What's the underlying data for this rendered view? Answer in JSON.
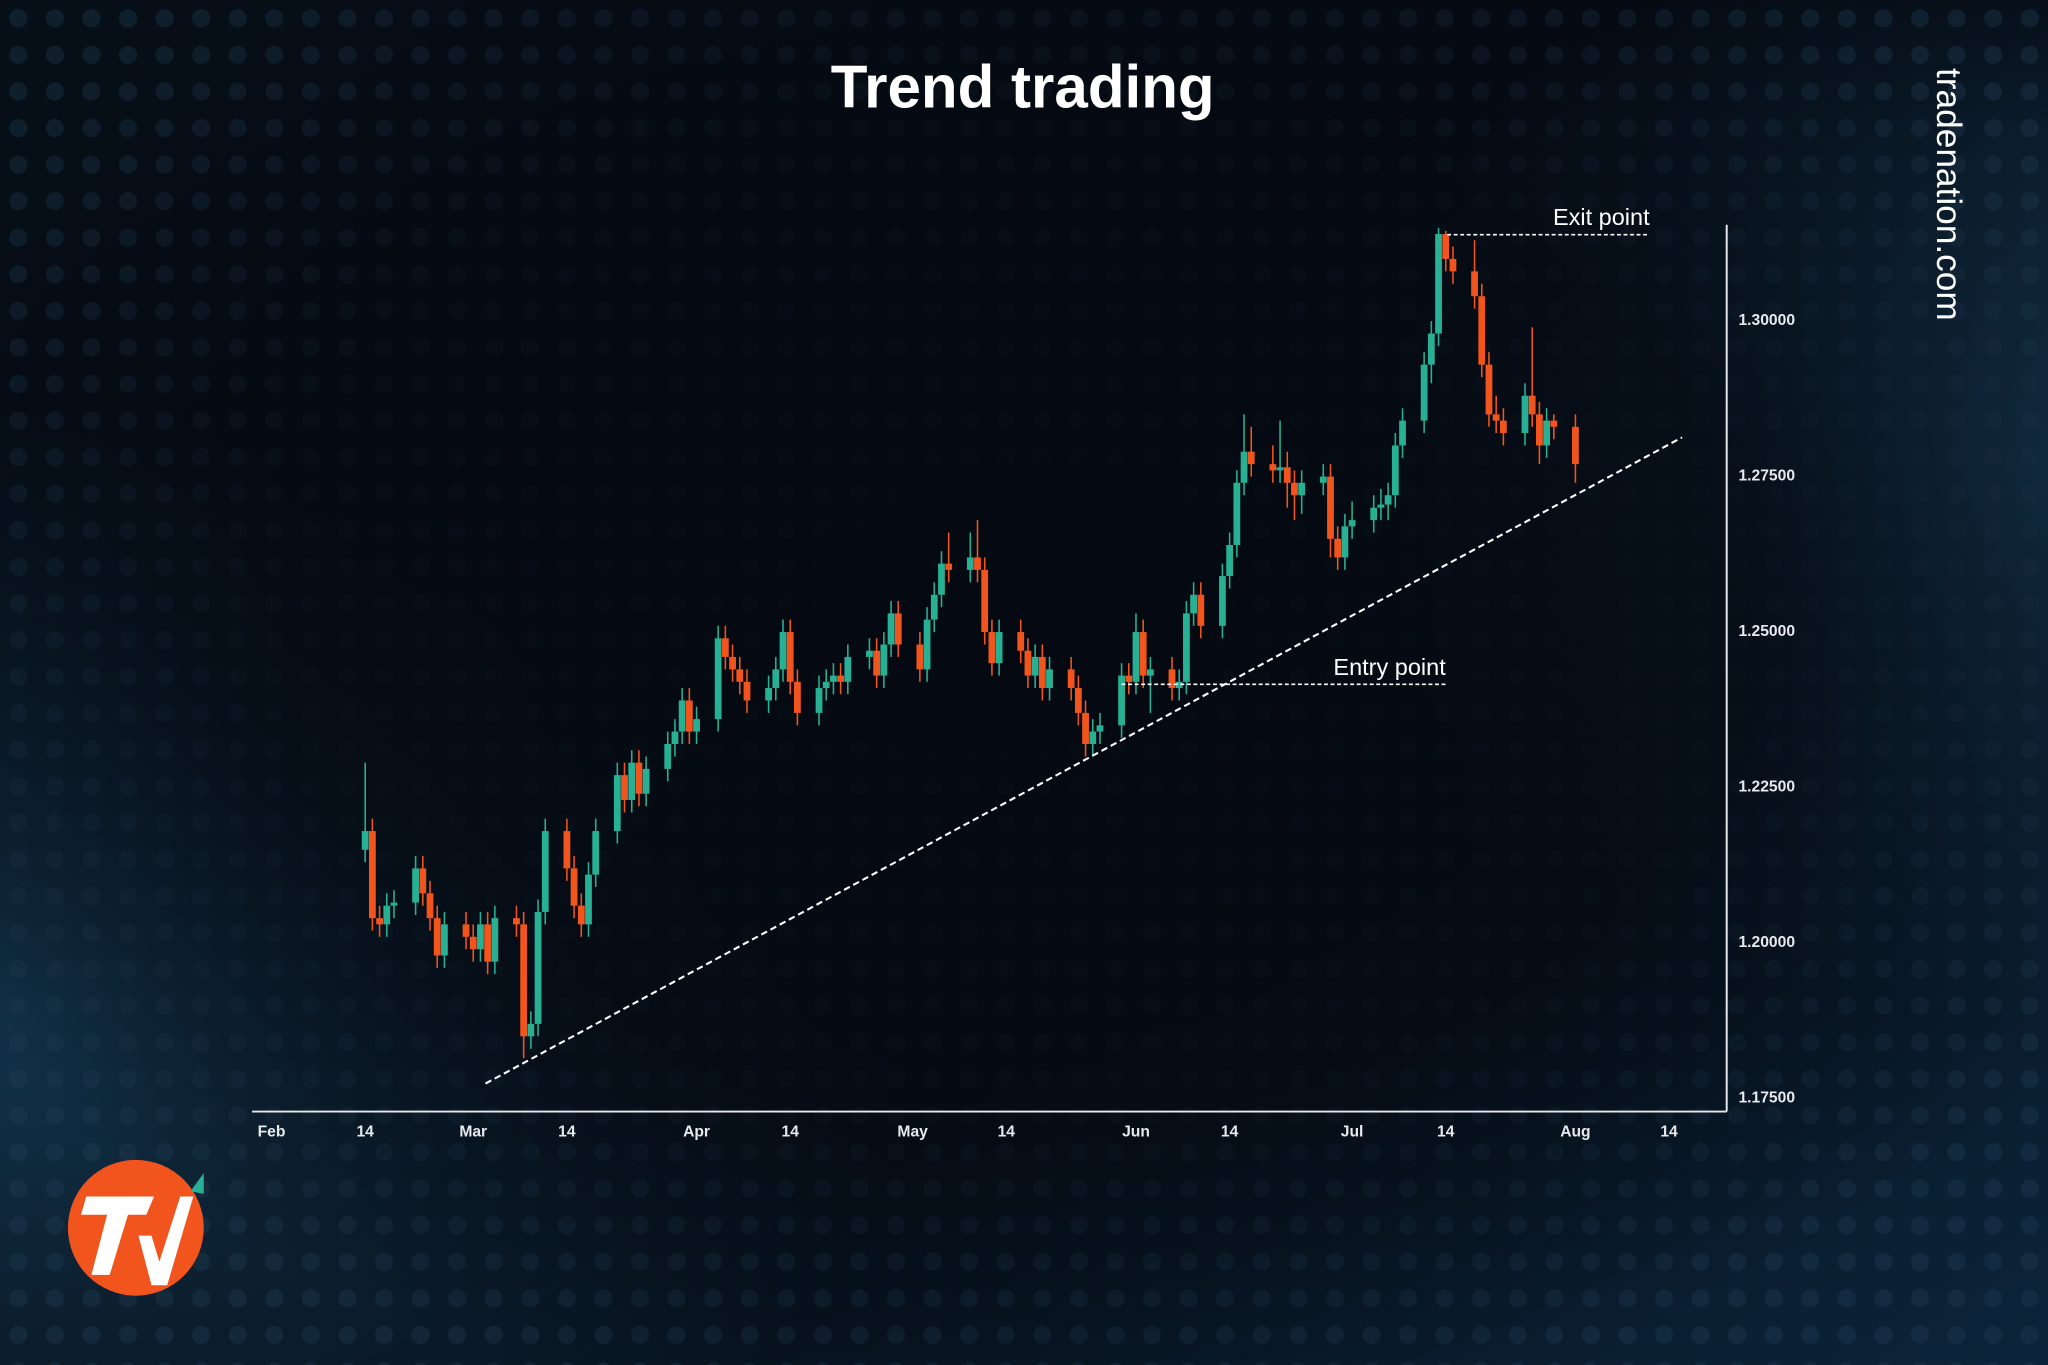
{
  "chart_data": {
    "type": "candlestick",
    "title": "Trend trading",
    "watermark": "tradenation.com",
    "up_color": "#27b093",
    "down_color": "#f2541d",
    "x": [
      45,
      46,
      47,
      48,
      49,
      52,
      53,
      54,
      55,
      56,
      59,
      60,
      61,
      62,
      63,
      66,
      67,
      68,
      69,
      70,
      73,
      74,
      75,
      76,
      77,
      80,
      81,
      82,
      83,
      84,
      87,
      88,
      89,
      90,
      91,
      94,
      95,
      96,
      97,
      98,
      101,
      102,
      103,
      104,
      105,
      108,
      109,
      110,
      111,
      112,
      115,
      116,
      117,
      118,
      119,
      122,
      123,
      124,
      125,
      126,
      129,
      130,
      131,
      132,
      133,
      136,
      137,
      138,
      139,
      140,
      143,
      144,
      145,
      146,
      147,
      150,
      151,
      152,
      153,
      154,
      157,
      158,
      159,
      160,
      161,
      164,
      165,
      166,
      167,
      168,
      171,
      172,
      173,
      174,
      175,
      178,
      179,
      180,
      181,
      182,
      185,
      186,
      187,
      188,
      189,
      192,
      193,
      194,
      195,
      196,
      199,
      200,
      201,
      202,
      203,
      206,
      207,
      208,
      209,
      210,
      213
    ],
    "open": [
      1.215,
      1.218,
      1.204,
      1.203,
      1.206,
      1.2065,
      1.212,
      1.208,
      1.204,
      1.198,
      1.203,
      1.201,
      1.199,
      1.203,
      1.197,
      1.204,
      1.203,
      1.185,
      1.187,
      1.205,
      1.218,
      1.212,
      1.206,
      1.203,
      1.211,
      1.218,
      1.227,
      1.223,
      1.229,
      1.224,
      1.228,
      1.232,
      1.234,
      1.239,
      1.234,
      1.236,
      1.249,
      1.246,
      1.244,
      1.242,
      1.239,
      1.241,
      1.244,
      1.25,
      1.242,
      1.237,
      1.241,
      1.242,
      1.243,
      1.242,
      1.246,
      1.247,
      1.243,
      1.248,
      1.253,
      1.248,
      1.244,
      1.252,
      1.256,
      1.261,
      1.26,
      1.262,
      1.26,
      1.25,
      1.245,
      1.25,
      1.247,
      1.243,
      1.246,
      1.241,
      1.244,
      1.241,
      1.237,
      1.232,
      1.234,
      1.235,
      1.243,
      1.242,
      1.25,
      1.243,
      1.244,
      1.241,
      1.242,
      1.253,
      1.256,
      1.251,
      1.259,
      1.264,
      1.274,
      1.279,
      1.277,
      1.276,
      1.2765,
      1.274,
      1.272,
      1.274,
      1.275,
      1.265,
      1.262,
      1.267,
      1.268,
      1.27,
      1.2705,
      1.272,
      1.28,
      1.284,
      1.293,
      1.298,
      1.314,
      1.31,
      1.308,
      1.304,
      1.293,
      1.285,
      1.284,
      1.282,
      1.288,
      1.285,
      1.28,
      1.284,
      1.283
    ],
    "high": [
      1.229,
      1.22,
      1.206,
      1.208,
      1.2085,
      1.214,
      1.214,
      1.21,
      1.206,
      1.205,
      1.205,
      1.203,
      1.205,
      1.205,
      1.206,
      1.206,
      1.205,
      1.189,
      1.207,
      1.22,
      1.22,
      1.214,
      1.208,
      1.213,
      1.22,
      1.229,
      1.229,
      1.231,
      1.231,
      1.23,
      1.234,
      1.236,
      1.241,
      1.241,
      1.238,
      1.251,
      1.251,
      1.248,
      1.246,
      1.244,
      1.243,
      1.246,
      1.252,
      1.252,
      1.244,
      1.243,
      1.244,
      1.245,
      1.245,
      1.248,
      1.249,
      1.249,
      1.25,
      1.255,
      1.255,
      1.25,
      1.254,
      1.258,
      1.263,
      1.266,
      1.266,
      1.268,
      1.262,
      1.252,
      1.252,
      1.252,
      1.249,
      1.248,
      1.248,
      1.246,
      1.246,
      1.243,
      1.239,
      1.236,
      1.237,
      1.245,
      1.245,
      1.253,
      1.252,
      1.246,
      1.246,
      1.244,
      1.255,
      1.258,
      1.258,
      1.261,
      1.266,
      1.276,
      1.285,
      1.283,
      1.28,
      1.284,
      1.279,
      1.276,
      1.276,
      1.277,
      1.277,
      1.267,
      1.269,
      1.271,
      1.272,
      1.273,
      1.274,
      1.282,
      1.286,
      1.295,
      1.3,
      1.315,
      1.3145,
      1.312,
      1.313,
      1.306,
      1.295,
      1.288,
      1.286,
      1.29,
      1.299,
      1.287,
      1.286,
      1.285,
      1.285
    ],
    "low": [
      1.213,
      1.202,
      1.201,
      1.201,
      1.204,
      1.2045,
      1.206,
      1.202,
      1.196,
      1.196,
      1.199,
      1.197,
      1.197,
      1.195,
      1.195,
      1.201,
      1.1815,
      1.183,
      1.185,
      1.203,
      1.21,
      1.204,
      1.201,
      1.201,
      1.209,
      1.216,
      1.221,
      1.221,
      1.222,
      1.222,
      1.226,
      1.23,
      1.232,
      1.232,
      1.232,
      1.234,
      1.244,
      1.242,
      1.24,
      1.237,
      1.237,
      1.239,
      1.242,
      1.24,
      1.235,
      1.235,
      1.239,
      1.24,
      1.24,
      1.24,
      1.244,
      1.241,
      1.241,
      1.246,
      1.246,
      1.242,
      1.242,
      1.25,
      1.254,
      1.258,
      1.258,
      1.258,
      1.248,
      1.243,
      1.243,
      1.245,
      1.241,
      1.241,
      1.239,
      1.239,
      1.239,
      1.235,
      1.23,
      1.23,
      1.232,
      1.233,
      1.24,
      1.24,
      1.241,
      1.237,
      1.239,
      1.239,
      1.24,
      1.251,
      1.249,
      1.249,
      1.257,
      1.262,
      1.272,
      1.275,
      1.274,
      1.274,
      1.27,
      1.268,
      1.269,
      1.272,
      1.262,
      1.26,
      1.26,
      1.265,
      1.266,
      1.268,
      1.268,
      1.27,
      1.278,
      1.282,
      1.29,
      1.296,
      1.308,
      1.306,
      1.302,
      1.291,
      1.283,
      1.282,
      1.28,
      1.28,
      1.283,
      1.277,
      1.278,
      1.281,
      1.274
    ],
    "close": [
      1.218,
      1.204,
      1.203,
      1.206,
      1.2065,
      1.212,
      1.208,
      1.204,
      1.198,
      1.203,
      1.201,
      1.199,
      1.203,
      1.197,
      1.204,
      1.203,
      1.185,
      1.187,
      1.205,
      1.218,
      1.212,
      1.206,
      1.203,
      1.211,
      1.218,
      1.227,
      1.223,
      1.229,
      1.224,
      1.228,
      1.232,
      1.234,
      1.239,
      1.234,
      1.236,
      1.249,
      1.246,
      1.244,
      1.242,
      1.239,
      1.241,
      1.244,
      1.25,
      1.242,
      1.237,
      1.241,
      1.242,
      1.243,
      1.242,
      1.246,
      1.247,
      1.243,
      1.248,
      1.253,
      1.248,
      1.244,
      1.252,
      1.256,
      1.261,
      1.26,
      1.262,
      1.26,
      1.25,
      1.245,
      1.25,
      1.247,
      1.243,
      1.246,
      1.241,
      1.244,
      1.241,
      1.237,
      1.232,
      1.234,
      1.235,
      1.243,
      1.242,
      1.25,
      1.243,
      1.244,
      1.241,
      1.242,
      1.253,
      1.256,
      1.251,
      1.259,
      1.264,
      1.274,
      1.279,
      1.277,
      1.276,
      1.2765,
      1.274,
      1.272,
      1.274,
      1.275,
      1.265,
      1.262,
      1.267,
      1.268,
      1.27,
      1.2705,
      1.272,
      1.28,
      1.284,
      1.293,
      1.298,
      1.314,
      1.31,
      1.308,
      1.304,
      1.293,
      1.285,
      1.284,
      1.282,
      1.288,
      1.285,
      1.28,
      1.284,
      1.283,
      1.277
    ],
    "xlim": [
      29.3,
      234
    ],
    "xticks": [
      {
        "value": 32,
        "label": "Feb"
      },
      {
        "value": 45,
        "label": "14"
      },
      {
        "value": 60,
        "label": "Mar"
      },
      {
        "value": 73,
        "label": "14"
      },
      {
        "value": 91,
        "label": "Apr"
      },
      {
        "value": 104,
        "label": "14"
      },
      {
        "value": 121,
        "label": "May"
      },
      {
        "value": 134,
        "label": "14"
      },
      {
        "value": 152,
        "label": "Jun"
      },
      {
        "value": 165,
        "label": "14"
      },
      {
        "value": 182,
        "label": "Jul"
      },
      {
        "value": 195,
        "label": "14"
      },
      {
        "value": 213,
        "label": "Aug"
      },
      {
        "value": 226,
        "label": "14"
      }
    ],
    "ylim": [
      1.1729,
      1.3155
    ],
    "yticks": [
      {
        "value": 1.175,
        "label": "1.17500"
      },
      {
        "value": 1.2,
        "label": "1.20000"
      },
      {
        "value": 1.225,
        "label": "1.22500"
      },
      {
        "value": 1.25,
        "label": "1.25000"
      },
      {
        "value": 1.275,
        "label": "1.27500"
      },
      {
        "value": 1.3,
        "label": "1.30000"
      }
    ],
    "trendline": {
      "x": [
        61.7,
        227.8
      ],
      "y": [
        1.1774,
        1.2813
      ]
    },
    "annotations": [
      {
        "text": "Entry point",
        "x": [
          150,
          195
        ],
        "y": 1.2416
      },
      {
        "text": "Exit point",
        "x": [
          195.2,
          223.3
        ],
        "y": 1.3139
      }
    ]
  }
}
